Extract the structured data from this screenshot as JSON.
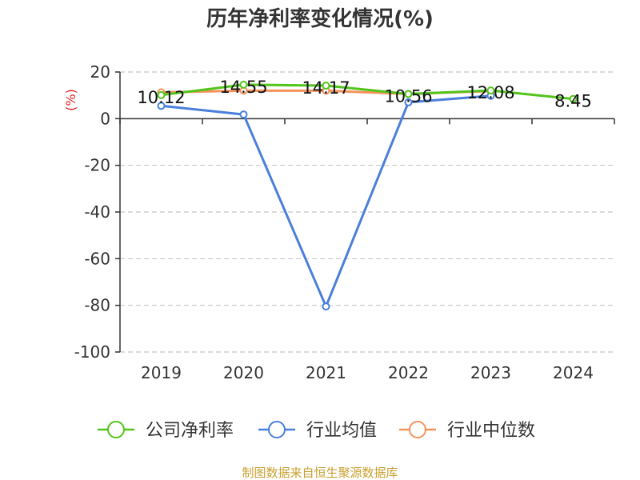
{
  "chart_data": {
    "type": "line",
    "title": "历年净利率变化情况(%)",
    "ylabel": "(%)",
    "xlabel": "",
    "categories": [
      "2019",
      "2020",
      "2021",
      "2022",
      "2023",
      "2024"
    ],
    "ylim": [
      -100,
      20
    ],
    "yticks": [
      20,
      0,
      -20,
      -40,
      -60,
      -80,
      -100
    ],
    "grid": true,
    "legend_position": "bottom",
    "series": [
      {
        "name": "公司净利率",
        "color": "#52c41a",
        "values": [
          10.12,
          14.55,
          14.17,
          10.56,
          12.08,
          8.45
        ],
        "labels": [
          "10.12",
          "14.55",
          "14.17",
          "10.56",
          "12.08",
          "8.45"
        ]
      },
      {
        "name": "行业均值",
        "color": "#4a7fdc",
        "values": [
          5.5,
          1.8,
          -80.5,
          7.0,
          9.8,
          null
        ]
      },
      {
        "name": "行业中位数",
        "color": "#f5935a",
        "values": [
          11.3,
          12.0,
          12.0,
          10.6,
          11.8,
          null
        ]
      }
    ]
  },
  "source": "制图数据来自恒生聚源数据库"
}
